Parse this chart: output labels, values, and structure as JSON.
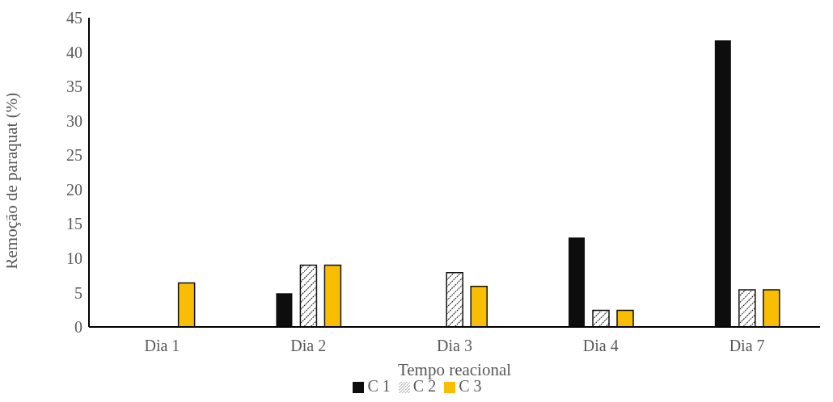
{
  "chart_data": {
    "type": "bar",
    "xlabel": "Tempo reacional",
    "ylabel": "Remoção de paraquat (%)",
    "categories": [
      "Dia 1",
      "Dia 2",
      "Dia 3",
      "Dia 4",
      "Dia 7"
    ],
    "series": [
      {
        "name": "C 1",
        "color": "#0d0d0d",
        "values": [
          0,
          4.9,
          0,
          13.0,
          41.7
        ]
      },
      {
        "name": "C 2",
        "color": "#111111",
        "values": [
          0,
          9.0,
          7.9,
          2.4,
          5.4
        ]
      },
      {
        "name": "C 3",
        "color": "#f9bd04",
        "values": [
          6.4,
          9.0,
          5.9,
          2.4,
          5.4
        ]
      }
    ],
    "ylim": [
      0,
      45
    ],
    "yticks": [
      0,
      5,
      10,
      15,
      20,
      25,
      30,
      35,
      40,
      45
    ],
    "grid": false,
    "legend": "bottom"
  }
}
